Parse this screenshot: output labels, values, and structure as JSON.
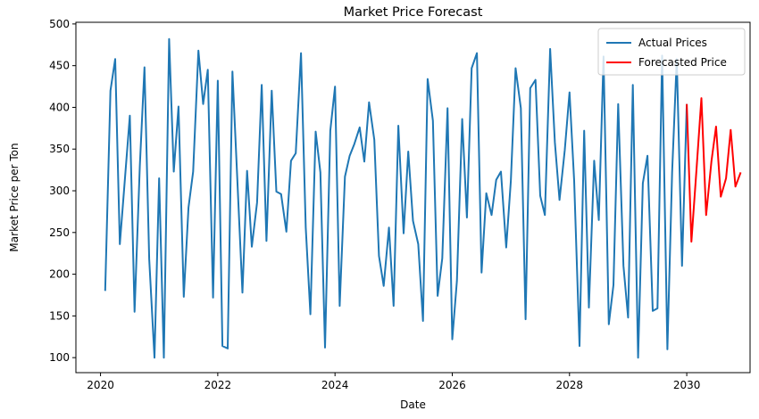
{
  "chart_data": {
    "type": "line",
    "title": "Market Price Forecast",
    "xlabel": "Date",
    "ylabel": "Market Price per Ton",
    "xlim": [
      2019.58,
      2031.08
    ],
    "ylim": [
      82,
      502
    ],
    "xticks": [
      2020,
      2022,
      2024,
      2026,
      2028,
      2030
    ],
    "yticks": [
      100,
      150,
      200,
      250,
      300,
      350,
      400,
      450,
      500
    ],
    "grid": false,
    "legend_position": "top-right",
    "series": [
      {
        "name": "Actual Prices",
        "color": "#1f77b4",
        "x": [
          2020.08,
          2020.17,
          2020.25,
          2020.33,
          2020.42,
          2020.5,
          2020.58,
          2020.67,
          2020.75,
          2020.83,
          2020.92,
          2021.0,
          2021.08,
          2021.17,
          2021.25,
          2021.33,
          2021.42,
          2021.5,
          2021.58,
          2021.67,
          2021.75,
          2021.83,
          2021.92,
          2022.0,
          2022.08,
          2022.17,
          2022.25,
          2022.33,
          2022.42,
          2022.5,
          2022.58,
          2022.67,
          2022.75,
          2022.83,
          2022.92,
          2023.0,
          2023.08,
          2023.17,
          2023.25,
          2023.33,
          2023.42,
          2023.5,
          2023.58,
          2023.67,
          2023.75,
          2023.83,
          2023.92,
          2024.0,
          2024.08,
          2024.17,
          2024.25,
          2024.33,
          2024.42,
          2024.5,
          2024.58,
          2024.67,
          2024.75,
          2024.83,
          2024.92,
          2025.0,
          2025.08,
          2025.17,
          2025.25,
          2025.33,
          2025.42,
          2025.5,
          2025.58,
          2025.67,
          2025.75,
          2025.83,
          2025.92,
          2026.0,
          2026.08,
          2026.17,
          2026.25,
          2026.33,
          2026.42,
          2026.5,
          2026.58,
          2026.67,
          2026.75,
          2026.83,
          2026.92,
          2027.0,
          2027.08,
          2027.17,
          2027.25,
          2027.33,
          2027.42,
          2027.5,
          2027.58,
          2027.67,
          2027.75,
          2027.83,
          2027.92,
          2028.0,
          2028.08,
          2028.17,
          2028.25,
          2028.33,
          2028.42,
          2028.5,
          2028.58,
          2028.67,
          2028.75,
          2028.83,
          2028.92,
          2029.0,
          2029.08,
          2029.17,
          2029.25,
          2029.33,
          2029.42,
          2029.5,
          2029.58,
          2029.67,
          2029.75,
          2029.83,
          2029.92,
          2030.0
        ],
        "values": [
          180,
          420,
          458,
          236,
          317,
          390,
          155,
          330,
          448,
          218,
          100,
          315,
          100,
          482,
          323,
          401,
          173,
          280,
          323,
          468,
          404,
          445,
          172,
          432,
          114,
          111,
          443,
          320,
          178,
          324,
          233,
          286,
          427,
          240,
          420,
          299,
          296,
          251,
          336,
          345,
          465,
          256,
          152,
          371,
          322,
          112,
          372,
          425,
          162,
          317,
          342,
          356,
          376,
          335,
          406,
          361,
          222,
          186,
          256,
          162,
          378,
          249,
          347,
          264,
          236,
          144,
          434,
          384,
          174,
          219,
          399,
          122,
          192,
          386,
          268,
          447,
          465,
          202,
          297,
          271,
          313,
          323,
          232,
          312,
          447,
          399,
          146,
          423,
          433,
          294,
          271,
          470,
          358,
          289,
          349,
          418,
          312,
          114,
          372,
          160,
          336,
          265,
          461,
          140,
          187,
          404,
          210,
          148,
          427,
          100,
          309,
          342,
          156,
          159,
          462,
          110,
          322,
          458,
          210,
          404
        ]
      },
      {
        "name": "Forecasted Price",
        "color": "#ff0000",
        "x": [
          2030.0,
          2030.08,
          2030.17,
          2030.25,
          2030.33,
          2030.42,
          2030.5,
          2030.58,
          2030.67,
          2030.75,
          2030.83,
          2030.92
        ],
        "values": [
          404,
          239,
          330,
          411,
          271,
          335,
          377,
          293,
          315,
          373,
          305,
          322
        ]
      }
    ]
  }
}
